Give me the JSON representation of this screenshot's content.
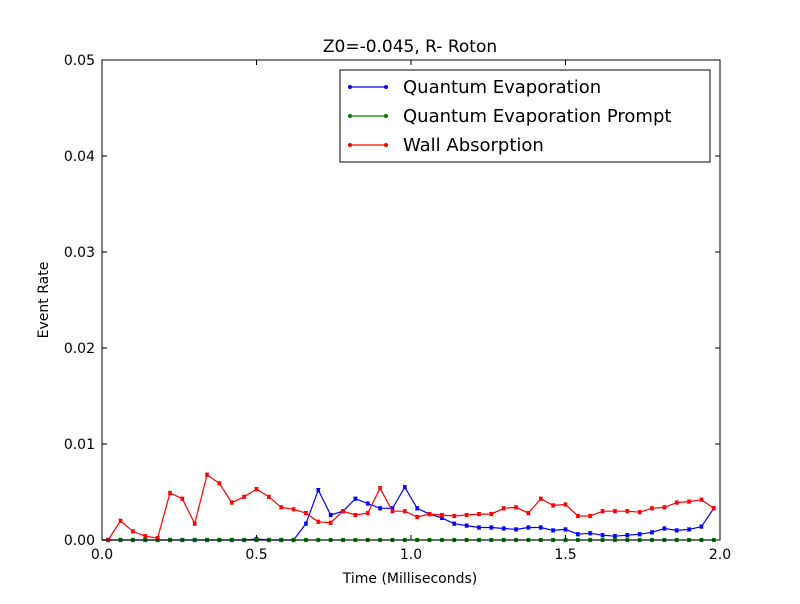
{
  "chart_data": {
    "type": "line",
    "title": "Z0=-0.045, R- Roton",
    "xlabel": "Time (Milliseconds)",
    "ylabel": "Event Rate",
    "xlim": [
      0,
      2.0
    ],
    "ylim": [
      0,
      0.05
    ],
    "x_ticks": [
      0.0,
      0.5,
      1.0,
      1.5,
      2.0
    ],
    "x_tick_labels": [
      "0.0",
      "0.5",
      "1.0",
      "1.5",
      "2.0"
    ],
    "y_ticks": [
      0.0,
      0.01,
      0.02,
      0.03,
      0.04,
      0.05
    ],
    "y_tick_labels": [
      "0.00",
      "0.01",
      "0.02",
      "0.03",
      "0.04",
      "0.05"
    ],
    "grid": false,
    "legend_position": "top-right",
    "x": [
      0.02,
      0.06,
      0.1,
      0.14,
      0.18,
      0.22,
      0.26,
      0.3,
      0.34,
      0.38,
      0.42,
      0.46,
      0.5,
      0.54,
      0.58,
      0.62,
      0.66,
      0.7,
      0.74,
      0.78,
      0.82,
      0.86,
      0.9,
      0.94,
      0.98,
      1.02,
      1.06,
      1.1,
      1.14,
      1.18,
      1.22,
      1.26,
      1.3,
      1.34,
      1.38,
      1.42,
      1.46,
      1.5,
      1.54,
      1.58,
      1.62,
      1.66,
      1.7,
      1.74,
      1.78,
      1.82,
      1.86,
      1.9,
      1.94,
      1.98
    ],
    "series": [
      {
        "name": "Quantum Evaporation",
        "color": "#0000ff",
        "values": [
          0,
          0,
          0,
          0,
          0,
          0,
          0,
          0,
          0,
          0,
          0,
          0,
          0.0001,
          0,
          0,
          0,
          0.0017,
          0.0052,
          0.0026,
          0.003,
          0.0043,
          0.0038,
          0.0033,
          0.0033,
          0.0055,
          0.0033,
          0.0027,
          0.0023,
          0.0017,
          0.0015,
          0.0013,
          0.0013,
          0.0012,
          0.0011,
          0.0013,
          0.0013,
          0.001,
          0.0011,
          0.0006,
          0.0007,
          0.0005,
          0.0004,
          0.0005,
          0.0006,
          0.0008,
          0.0012,
          0.001,
          0.0011,
          0.0014,
          0.0033
        ]
      },
      {
        "name": "Quantum Evaporation Prompt",
        "color": "#008000",
        "values": [
          0,
          0,
          0,
          0,
          0,
          0,
          0,
          0,
          0,
          0,
          0,
          0,
          0,
          0,
          0,
          0,
          0,
          0,
          0,
          0,
          0,
          0,
          0,
          0,
          0,
          0,
          0,
          0,
          0,
          0,
          0,
          0,
          0,
          0,
          0,
          0,
          0,
          0,
          0,
          0,
          0,
          0,
          0,
          0,
          0,
          0,
          0,
          0,
          0,
          0
        ]
      },
      {
        "name": "Wall Absorption",
        "color": "#ff0000",
        "values": [
          0,
          0.002,
          0.0009,
          0.0004,
          0.0002,
          0.0049,
          0.0043,
          0.0017,
          0.0068,
          0.0059,
          0.0039,
          0.0045,
          0.0053,
          0.0045,
          0.0034,
          0.0032,
          0.0028,
          0.0019,
          0.0018,
          0.003,
          0.0026,
          0.0028,
          0.0054,
          0.003,
          0.003,
          0.0024,
          0.0027,
          0.0026,
          0.0025,
          0.0026,
          0.0027,
          0.0027,
          0.0033,
          0.0034,
          0.0028,
          0.0043,
          0.0036,
          0.0037,
          0.0025,
          0.0025,
          0.003,
          0.003,
          0.003,
          0.0029,
          0.0033,
          0.0034,
          0.0039,
          0.004,
          0.0042,
          0.0033
        ]
      }
    ]
  }
}
